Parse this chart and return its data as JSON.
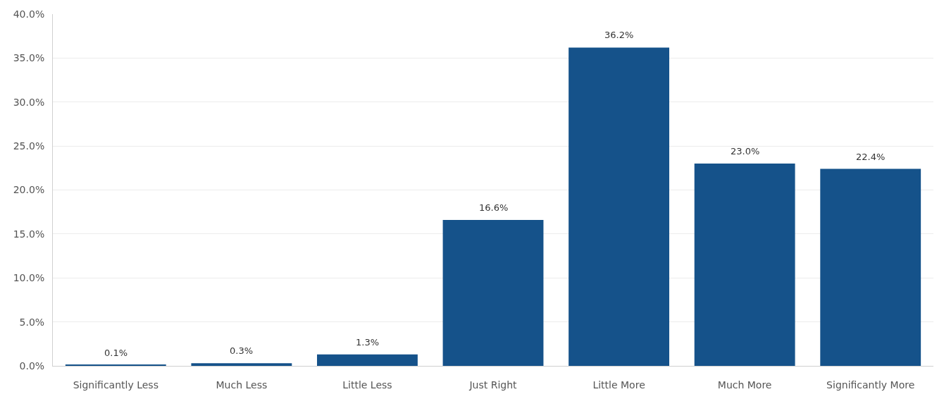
{
  "chart_data": {
    "type": "bar",
    "categories": [
      "Significantly Less",
      "Much Less",
      "Little Less",
      "Just Right",
      "Little More",
      "Much More",
      "Significantly More"
    ],
    "values": [
      0.1,
      0.3,
      1.3,
      16.6,
      36.2,
      23.0,
      22.4
    ],
    "value_labels": [
      "0.1%",
      "0.3%",
      "1.3%",
      "16.6%",
      "36.2%",
      "23.0%",
      "22.4%"
    ],
    "color": "#15528a",
    "ylim": [
      0,
      40
    ],
    "yticks": [
      {
        "value": 0,
        "label": "0.0%"
      },
      {
        "value": 5,
        "label": "5.0%"
      },
      {
        "value": 10,
        "label": "10.0%"
      },
      {
        "value": 15,
        "label": "15.0%"
      },
      {
        "value": 20,
        "label": "20.0%"
      },
      {
        "value": 25,
        "label": "25.0%"
      },
      {
        "value": 30,
        "label": "30.0%"
      },
      {
        "value": 35,
        "label": "35.0%"
      },
      {
        "value": 40,
        "label": "40.0%"
      }
    ],
    "grid": "y"
  }
}
